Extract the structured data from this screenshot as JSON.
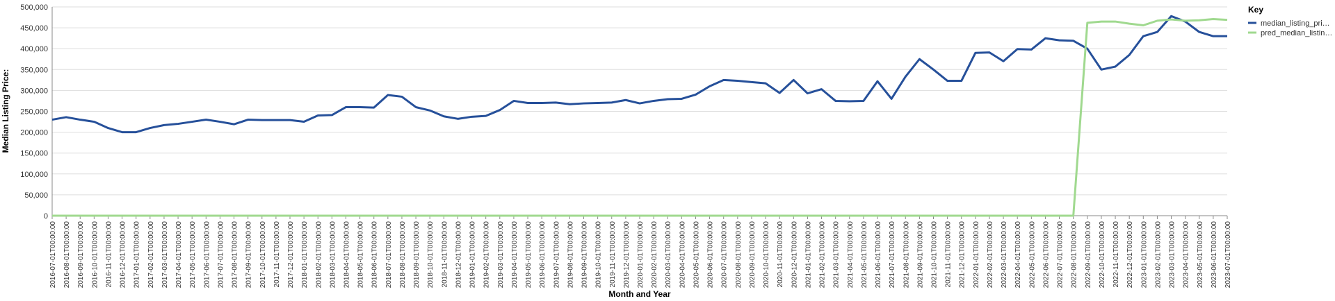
{
  "chart_data": {
    "type": "line",
    "x_label": "Month and Year",
    "y_label": "Median Listing Price:",
    "legend_title": "Key",
    "legend_position": "right",
    "grid": true,
    "categories": [
      "2016-07-01T00:00:00",
      "2016-08-01T00:00:00",
      "2016-09-01T00:00:00",
      "2016-10-01T00:00:00",
      "2016-11-01T00:00:00",
      "2016-12-01T00:00:00",
      "2017-01-01T00:00:00",
      "2017-02-01T00:00:00",
      "2017-03-01T00:00:00",
      "2017-04-01T00:00:00",
      "2017-05-01T00:00:00",
      "2017-06-01T00:00:00",
      "2017-07-01T00:00:00",
      "2017-08-01T00:00:00",
      "2017-09-01T00:00:00",
      "2017-10-01T00:00:00",
      "2017-11-01T00:00:00",
      "2017-12-01T00:00:00",
      "2018-01-01T00:00:00",
      "2018-02-01T00:00:00",
      "2018-03-01T00:00:00",
      "2018-04-01T00:00:00",
      "2018-05-01T00:00:00",
      "2018-06-01T00:00:00",
      "2018-07-01T00:00:00",
      "2018-08-01T00:00:00",
      "2018-09-01T00:00:00",
      "2018-10-01T00:00:00",
      "2018-11-01T00:00:00",
      "2018-12-01T00:00:00",
      "2019-01-01T00:00:00",
      "2019-02-01T00:00:00",
      "2019-03-01T00:00:00",
      "2019-04-01T00:00:00",
      "2019-05-01T00:00:00",
      "2019-06-01T00:00:00",
      "2019-07-01T00:00:00",
      "2019-08-01T00:00:00",
      "2019-09-01T00:00:00",
      "2019-10-01T00:00:00",
      "2019-11-01T00:00:00",
      "2019-12-01T00:00:00",
      "2020-01-01T00:00:00",
      "2020-02-01T00:00:00",
      "2020-03-01T00:00:00",
      "2020-04-01T00:00:00",
      "2020-05-01T00:00:00",
      "2020-06-01T00:00:00",
      "2020-07-01T00:00:00",
      "2020-08-01T00:00:00",
      "2020-09-01T00:00:00",
      "2020-10-01T00:00:00",
      "2020-11-01T00:00:00",
      "2020-12-01T00:00:00",
      "2021-01-01T00:00:00",
      "2021-02-01T00:00:00",
      "2021-03-01T00:00:00",
      "2021-04-01T00:00:00",
      "2021-05-01T00:00:00",
      "2021-06-01T00:00:00",
      "2021-07-01T00:00:00",
      "2021-08-01T00:00:00",
      "2021-09-01T00:00:00",
      "2021-10-01T00:00:00",
      "2021-11-01T00:00:00",
      "2021-12-01T00:00:00",
      "2022-01-01T00:00:00",
      "2022-02-01T00:00:00",
      "2022-03-01T00:00:00",
      "2022-04-01T00:00:00",
      "2022-05-01T00:00:00",
      "2022-06-01T00:00:00",
      "2022-07-01T00:00:00",
      "2022-08-01T00:00:00",
      "2022-09-01T00:00:00",
      "2022-10-01T00:00:00",
      "2022-11-01T00:00:00",
      "2022-12-01T00:00:00",
      "2023-01-01T00:00:00",
      "2023-02-01T00:00:00",
      "2023-03-01T00:00:00",
      "2023-04-01T00:00:00",
      "2023-05-01T00:00:00",
      "2023-06-01T00:00:00",
      "2023-07-01T00:00:00"
    ],
    "series": [
      {
        "name": "median_listing_pri…",
        "color": "#26509a",
        "values": [
          230000,
          236000,
          230000,
          225000,
          210000,
          200000,
          200000,
          210000,
          217000,
          220000,
          225000,
          230000,
          225000,
          219000,
          230000,
          229000,
          229000,
          229000,
          225000,
          240000,
          241000,
          260000,
          260000,
          259000,
          289000,
          285000,
          260000,
          252000,
          238000,
          232000,
          237000,
          239000,
          253000,
          275000,
          270000,
          270000,
          271000,
          267000,
          269000,
          270000,
          271000,
          277000,
          269000,
          275000,
          279000,
          280000,
          290000,
          310000,
          325000,
          323000,
          320000,
          317000,
          294000,
          325000,
          293000,
          303000,
          275000,
          274000,
          275000,
          322000,
          280000,
          333000,
          375000,
          350000,
          323000,
          323000,
          390000,
          391000,
          370000,
          399000,
          398000,
          425000,
          420000,
          419000,
          400000,
          350000,
          357000,
          385000,
          430000,
          440000,
          478000,
          465000,
          440000,
          430000,
          430000
        ]
      },
      {
        "name": "pred_median_listin…",
        "color": "#a0d98f",
        "values": [
          0,
          0,
          0,
          0,
          0,
          0,
          0,
          0,
          0,
          0,
          0,
          0,
          0,
          0,
          0,
          0,
          0,
          0,
          0,
          0,
          0,
          0,
          0,
          0,
          0,
          0,
          0,
          0,
          0,
          0,
          0,
          0,
          0,
          0,
          0,
          0,
          0,
          0,
          0,
          0,
          0,
          0,
          0,
          0,
          0,
          0,
          0,
          0,
          0,
          0,
          0,
          0,
          0,
          0,
          0,
          0,
          0,
          0,
          0,
          0,
          0,
          0,
          0,
          0,
          0,
          0,
          0,
          0,
          0,
          0,
          0,
          0,
          0,
          0,
          462000,
          465000,
          465000,
          460000,
          456000,
          467000,
          470000,
          467000,
          468000,
          471000,
          469000
        ]
      }
    ],
    "ylim": [
      0,
      500000
    ],
    "yticks": [
      0,
      {
        "value": 50000,
        "label": "50,000"
      },
      {
        "value": 100000,
        "label": "100,000"
      },
      {
        "value": 150000,
        "label": "150,000"
      },
      {
        "value": 200000,
        "label": "200,000"
      },
      {
        "value": 250000,
        "label": "250,000"
      },
      {
        "value": 300000,
        "label": "300,000"
      },
      {
        "value": 350000,
        "label": "350,000"
      },
      {
        "value": 400000,
        "label": "400,000"
      },
      {
        "value": 450000,
        "label": "450,000"
      },
      {
        "value": 500000,
        "label": "500,000"
      }
    ]
  }
}
